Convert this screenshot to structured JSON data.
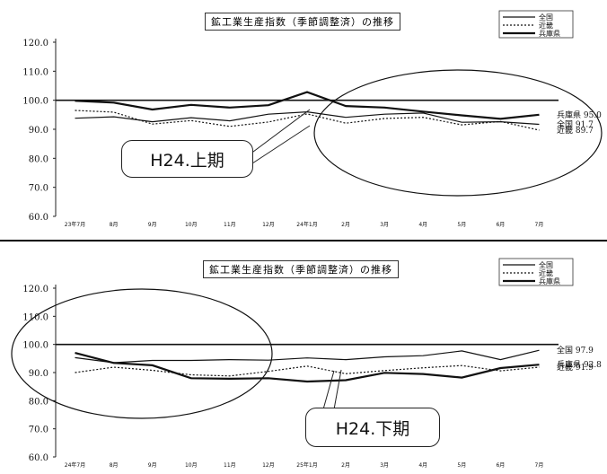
{
  "chart_data": [
    {
      "type": "line",
      "title": "鉱工業生産指数（季節調整済）の推移",
      "categories": [
        "23年7月",
        "8月",
        "9月",
        "10月",
        "11月",
        "12月",
        "24年1月",
        "2月",
        "3月",
        "4月",
        "5月",
        "6月",
        "7月"
      ],
      "yticks": [
        "120.0",
        "110.0",
        "100.0",
        "90.0",
        "80.0",
        "70.0",
        "60.0"
      ],
      "ylim": [
        60,
        120
      ],
      "reference_line": 100,
      "series": [
        {
          "name": "全国",
          "style": "solid-thin",
          "values": [
            93.8,
            94.3,
            92.6,
            94.0,
            92.9,
            95.2,
            96.0,
            94.1,
            95.2,
            95.6,
            92.4,
            92.6,
            91.7
          ],
          "end_label": "全国 91.7"
        },
        {
          "name": "近畿",
          "style": "dotted",
          "values": [
            96.5,
            95.9,
            91.8,
            93.0,
            91.0,
            92.5,
            95.3,
            92.1,
            93.7,
            94.1,
            91.5,
            92.7,
            89.7
          ],
          "end_label": "近畿 89.7"
        },
        {
          "name": "兵庫県",
          "style": "solid-bold",
          "values": [
            99.8,
            99.2,
            96.8,
            98.4,
            97.5,
            98.3,
            102.8,
            98.0,
            97.5,
            96.1,
            94.8,
            93.6,
            95.0
          ],
          "end_label": "兵庫県 95.0"
        }
      ],
      "legend": [
        "全国",
        "近畿",
        "兵庫県"
      ],
      "callout": "H24.上期"
    },
    {
      "type": "line",
      "title": "鉱工業生産指数（季節調整済）の推移",
      "categories": [
        "24年7月",
        "8月",
        "9月",
        "10月",
        "11月",
        "12月",
        "25年1月",
        "2月",
        "3月",
        "4月",
        "5月",
        "6月",
        "7月"
      ],
      "yticks": [
        "120.0",
        "110.0",
        "100.0",
        "90.0",
        "80.0",
        "70.0",
        "60.0"
      ],
      "ylim": [
        60,
        120
      ],
      "reference_line": 100,
      "series": [
        {
          "name": "全国",
          "style": "solid-thin",
          "values": [
            95.3,
            93.5,
            94.3,
            94.3,
            94.6,
            94.4,
            95.2,
            94.6,
            95.6,
            96.0,
            97.7,
            94.6,
            97.9
          ],
          "end_label": "全国 97.9"
        },
        {
          "name": "近畿",
          "style": "dotted",
          "values": [
            90.0,
            91.9,
            90.8,
            89.2,
            88.8,
            90.4,
            92.3,
            89.6,
            90.7,
            91.7,
            92.5,
            90.6,
            91.9
          ],
          "end_label": "近畿 91.9"
        },
        {
          "name": "兵庫県",
          "style": "solid-bold",
          "values": [
            97.0,
            93.4,
            92.6,
            88.0,
            87.8,
            88.0,
            86.8,
            87.3,
            89.9,
            89.5,
            88.2,
            91.6,
            92.8
          ],
          "end_label": "兵庫県 92.8"
        }
      ],
      "legend": [
        "全国",
        "近畿",
        "兵庫県"
      ],
      "callout": "H24.下期"
    }
  ]
}
